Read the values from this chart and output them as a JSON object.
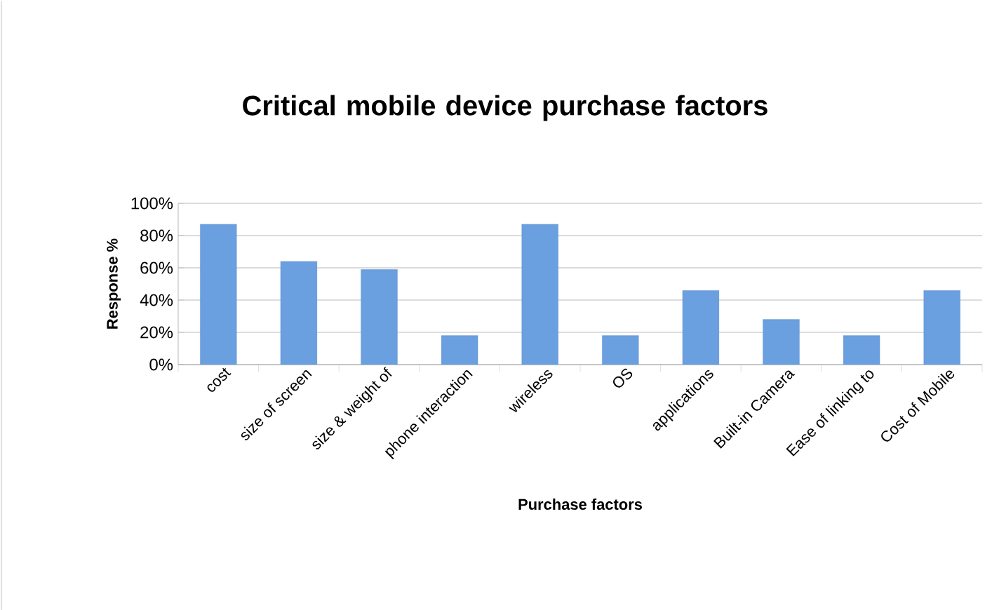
{
  "chart_data": {
    "type": "bar",
    "title": "Critical mobile device purchase factors",
    "xlabel": "Purchase factors",
    "ylabel": "Response %",
    "categories": [
      "cost",
      "size of screen",
      "size & weight of",
      "phone interaction",
      "wireless",
      "OS",
      "applications",
      "Built-in Camera",
      "Ease of linking to",
      "Cost of Mobile"
    ],
    "values": [
      87,
      64,
      59,
      18,
      87,
      18,
      46,
      28,
      18,
      46
    ],
    "color": "#6a9fe0",
    "ylim": [
      0,
      100
    ],
    "yticks": [
      {
        "value": 0,
        "label": "0%"
      },
      {
        "value": 20,
        "label": "20%"
      },
      {
        "value": 40,
        "label": "40%"
      },
      {
        "value": 60,
        "label": "60%"
      },
      {
        "value": 80,
        "label": "80%"
      },
      {
        "value": 100,
        "label": "100%"
      }
    ],
    "grid": "y"
  }
}
